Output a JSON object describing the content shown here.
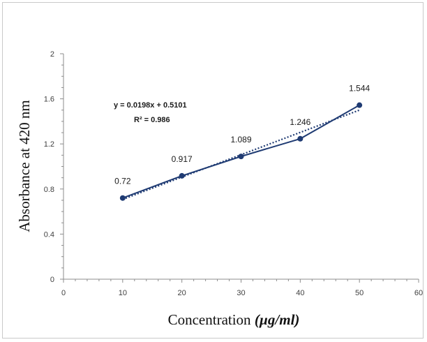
{
  "chart_data": {
    "type": "line",
    "x": [
      10,
      20,
      30,
      40,
      50
    ],
    "series": [
      {
        "values": [
          0.72,
          0.917,
          1.089,
          1.246,
          1.544
        ],
        "color": "#1f3b73"
      }
    ],
    "data_labels": [
      "0.72",
      "0.917",
      "1.089",
      "1.246",
      "1.544"
    ],
    "trendline": {
      "type": "linear",
      "style": "dotted",
      "color": "#1f3b73",
      "slope": 0.0198,
      "intercept": 0.5101,
      "equation": "y = 0.0198x + 0.5101",
      "r2": "R² = 0.986"
    },
    "xlim": [
      0,
      60
    ],
    "ylim": [
      0,
      2
    ],
    "xticks": [
      "0",
      "10",
      "20",
      "30",
      "40",
      "50",
      "60"
    ],
    "yticks": [
      "0",
      "0.4",
      "0.8",
      "1.2",
      "1.6",
      "2"
    ],
    "xlabel_text": "Concentration ",
    "xlabel_unit": "(µg/ml)",
    "ylabel": "Absorbance at 420 nm",
    "grid": false
  }
}
